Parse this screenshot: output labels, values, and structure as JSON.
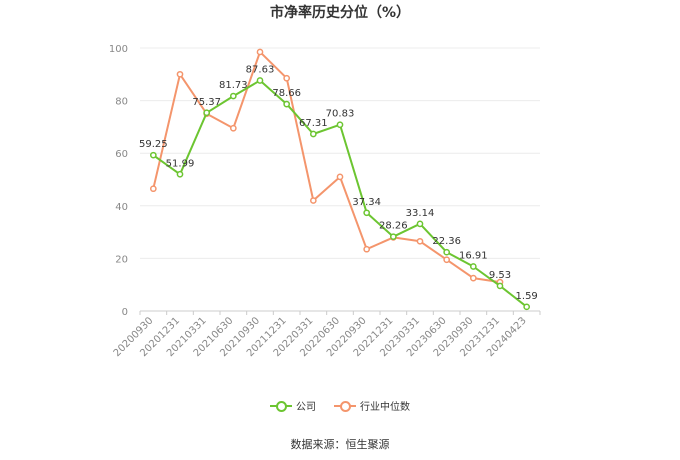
{
  "chart_data": {
    "type": "line",
    "title": "市净率历史分位（%）",
    "source": "数据来源：恒生聚源",
    "x": [
      "20200930",
      "20201231",
      "20210331",
      "20210630",
      "20210930",
      "20211231",
      "20220331",
      "20220630",
      "20220930",
      "20221231",
      "20230331",
      "20230630",
      "20230930",
      "20231231",
      "20240423"
    ],
    "yticks": [
      "0",
      "20",
      "40",
      "60",
      "80",
      "100"
    ],
    "ylim": [
      0,
      100
    ],
    "grid": true,
    "legend_position": "bottom-center",
    "series": [
      {
        "name": "公司",
        "color": "#6cc531",
        "values": [
          59.25,
          51.99,
          75.37,
          81.73,
          87.63,
          78.66,
          67.31,
          70.83,
          37.34,
          28.26,
          33.14,
          22.36,
          16.91,
          9.53,
          1.59
        ],
        "labels": [
          "59.25",
          "51.99",
          "75.37",
          "81.73",
          "87.63",
          "78.66",
          "67.31",
          "70.83",
          "37.34",
          "28.26",
          "33.14",
          "22.36",
          "16.91",
          "9.53",
          "1.59"
        ]
      },
      {
        "name": "行业中位数",
        "color": "#f4956c",
        "values": [
          46.5,
          90.0,
          75.0,
          69.5,
          98.5,
          88.5,
          42.0,
          51.0,
          23.5,
          28.0,
          26.5,
          19.5,
          12.5,
          11.0,
          null
        ]
      }
    ]
  }
}
